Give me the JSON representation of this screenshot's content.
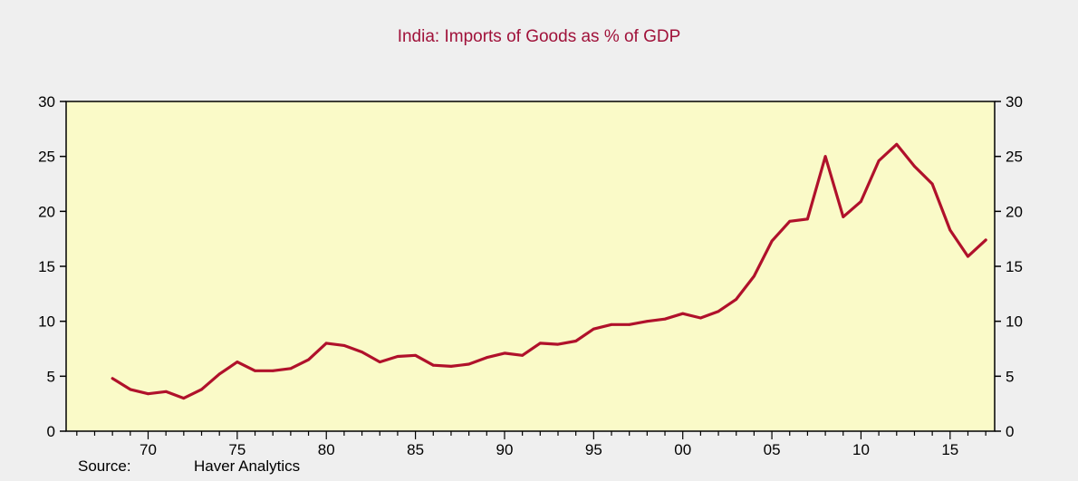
{
  "chart_data": {
    "type": "line",
    "title": "India: Imports of Goods as % of GDP",
    "xlabel": "",
    "ylabel": "",
    "ylim": [
      0,
      30
    ],
    "xlim": [
      1965.4,
      2017.5
    ],
    "y_ticks": [
      0,
      5,
      10,
      15,
      20,
      25,
      30
    ],
    "x_ticks": [
      {
        "year": 1970,
        "label": "70"
      },
      {
        "year": 1975,
        "label": "75"
      },
      {
        "year": 1980,
        "label": "80"
      },
      {
        "year": 1985,
        "label": "85"
      },
      {
        "year": 1990,
        "label": "90"
      },
      {
        "year": 1995,
        "label": "95"
      },
      {
        "year": 2000,
        "label": "00"
      },
      {
        "year": 2005,
        "label": "05"
      },
      {
        "year": 2010,
        "label": "10"
      },
      {
        "year": 2015,
        "label": "15"
      }
    ],
    "grid": false,
    "legend": "none",
    "series": [
      {
        "x": [
          1968,
          1969,
          1970,
          1971,
          1972,
          1973,
          1974,
          1975,
          1976,
          1977,
          1978,
          1979,
          1980,
          1981,
          1982,
          1983,
          1984,
          1985,
          1986,
          1987,
          1988,
          1989,
          1990,
          1991,
          1992,
          1993,
          1994,
          1995,
          1996,
          1997,
          1998,
          1999,
          2000,
          2001,
          2002,
          2003,
          2004,
          2005,
          2006,
          2007,
          2008,
          2009,
          2010,
          2011,
          2012,
          2013,
          2014,
          2015,
          2016,
          2017
        ],
        "values": [
          4.8,
          3.8,
          3.4,
          3.6,
          3.0,
          3.8,
          5.2,
          6.3,
          5.5,
          5.5,
          5.7,
          6.5,
          8.0,
          7.8,
          7.2,
          6.3,
          6.8,
          6.9,
          6.0,
          5.9,
          6.1,
          6.7,
          7.1,
          6.9,
          8.0,
          7.9,
          8.2,
          9.3,
          9.7,
          9.7,
          10.0,
          10.2,
          10.7,
          10.3,
          10.9,
          12.0,
          14.1,
          17.3,
          19.1,
          19.3,
          25.0,
          19.5,
          20.9,
          24.6,
          26.1,
          24.1,
          22.5,
          18.3,
          15.9,
          17.4
        ]
      }
    ],
    "colors": {
      "line": "#b0112b",
      "plot_background": "#fafac8",
      "page_background": "#efefef",
      "title": "#a0123a"
    },
    "source": {
      "label": "Source:",
      "value": "Haver Analytics"
    }
  }
}
